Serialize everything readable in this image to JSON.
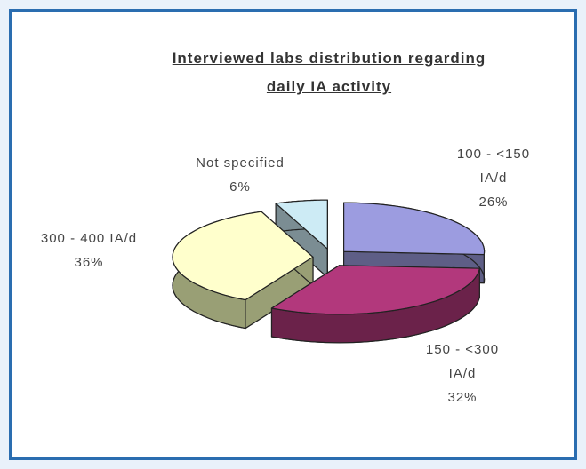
{
  "chart_data": {
    "type": "pie",
    "title": "Interviewed labs distribution regarding daily IA activity",
    "categories": [
      "100 - <150 IA/d",
      "150 - <300 IA/d",
      "300 - 400 IA/d",
      "Not specified"
    ],
    "values": [
      26,
      32,
      36,
      6
    ],
    "value_labels": [
      "26%",
      "32%",
      "36%",
      "6%"
    ],
    "colors": [
      "#9c9ce0",
      "#b2387c",
      "#ffffcc",
      "#cdebf5"
    ]
  }
}
